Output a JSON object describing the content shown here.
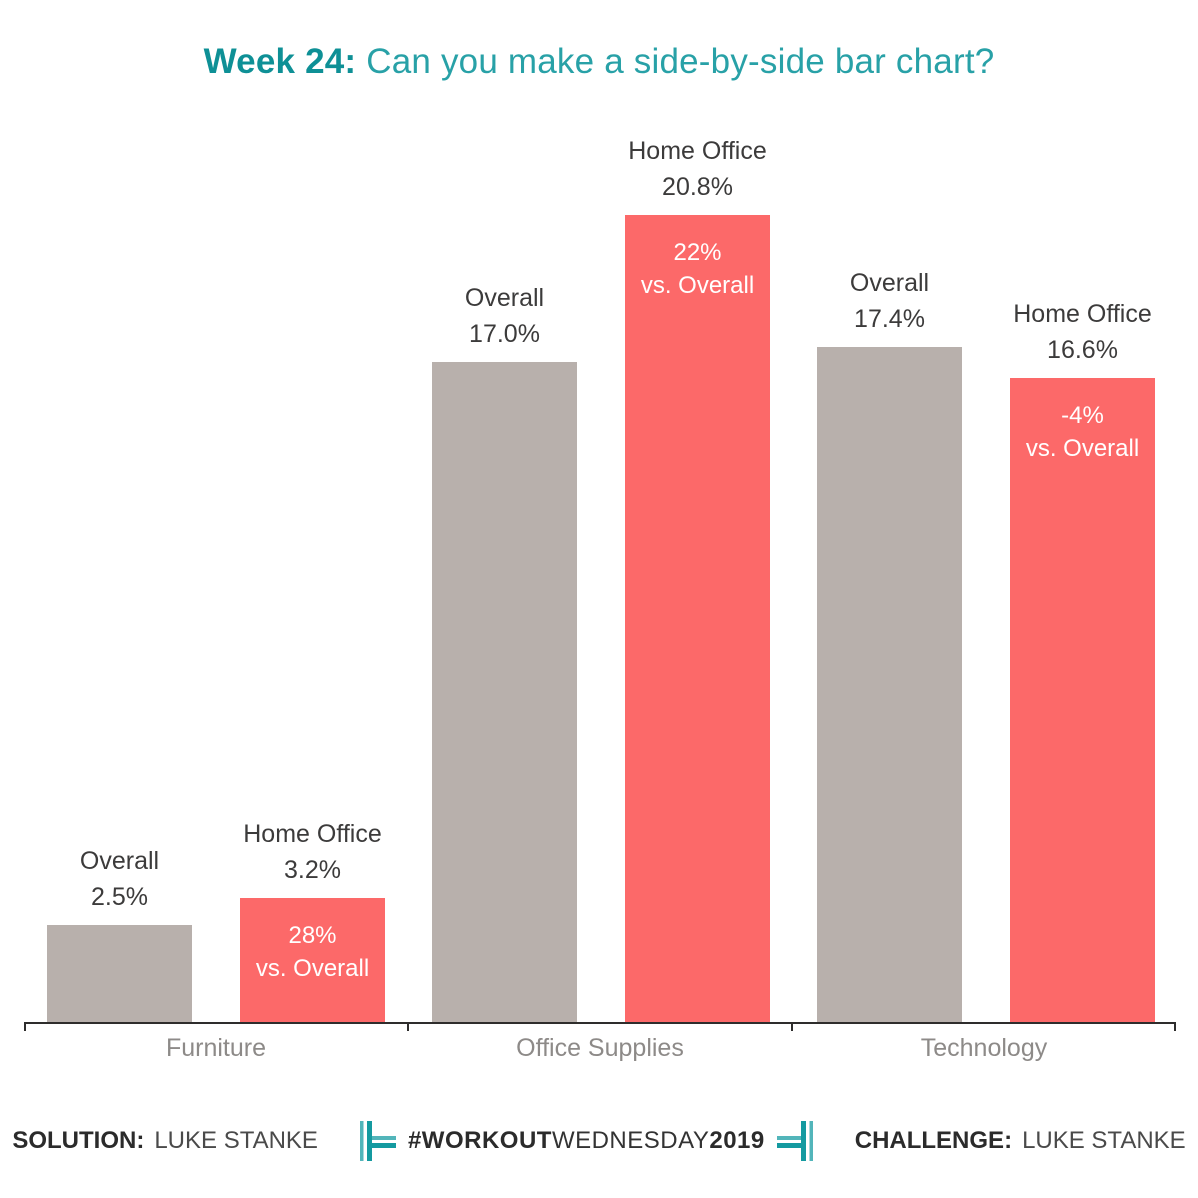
{
  "page": {
    "title_strong": "Week 24:",
    "title_rest": " Can you make a side-by-side bar chart?"
  },
  "chart_data": {
    "type": "bar",
    "title": "Week 24: Can you make a side-by-side bar chart?",
    "categories": [
      "Furniture",
      "Office Supplies",
      "Technology"
    ],
    "series": [
      {
        "name": "Overall",
        "color": "#b8b0ac",
        "values": [
          2.5,
          17.0,
          17.4
        ]
      },
      {
        "name": "Home Office",
        "color": "#fc6969",
        "values": [
          3.2,
          20.8,
          16.6
        ]
      }
    ],
    "deltas_vs_overall": [
      "28%",
      "22%",
      "-4%"
    ],
    "xlabel": "",
    "ylabel": "",
    "ylim": [
      0,
      22
    ],
    "grid": false,
    "legend": "none (labels above bars)"
  },
  "bars": [
    {
      "series": "Overall",
      "value": 2.5,
      "value_label": "2.5%"
    },
    {
      "series": "Home Office",
      "value": 3.2,
      "value_label": "3.2%",
      "delta": "28%",
      "delta_sub": "vs. Overall"
    },
    {
      "series": "Overall",
      "value": 17.0,
      "value_label": "17.0%"
    },
    {
      "series": "Home Office",
      "value": 20.8,
      "value_label": "20.8%",
      "delta": "22%",
      "delta_sub": "vs. Overall"
    },
    {
      "series": "Overall",
      "value": 17.4,
      "value_label": "17.4%"
    },
    {
      "series": "Home Office",
      "value": 16.6,
      "value_label": "16.6%",
      "delta": "-4%",
      "delta_sub": "vs. Overall"
    }
  ],
  "footer": {
    "solution_label": "SOLUTION:",
    "solution_name": "LUKE STANKE",
    "hashtag_bold1": "#WORKOUT",
    "hashtag_light": "WEDNESDAY",
    "hashtag_bold2": "2019",
    "challenge_label": "CHALLENGE:",
    "challenge_name": "LUKE STANKE"
  },
  "colors": {
    "title_teal_dark": "#0e9096",
    "title_teal": "#28a1a7",
    "icon_teal_dark": "#149aa0",
    "icon_teal_light": "#52b5ba",
    "bar_gray": "#b8b0ac",
    "bar_red": "#fc6969",
    "label_dark": "#3c3b3b",
    "category_gray": "#8d8a88",
    "axis": "#2e2d2c"
  }
}
